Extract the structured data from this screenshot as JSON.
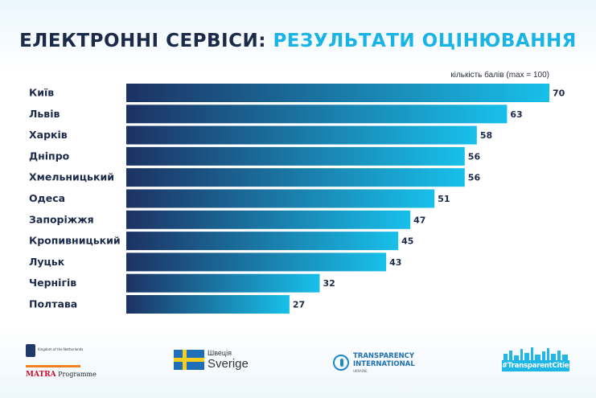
{
  "title": {
    "part1": "ЕЛЕКТРОННІ СЕРВІСИ:",
    "part2": "РЕЗУЛЬТАТИ ОЦІНЮВАННЯ"
  },
  "colors": {
    "title_dark": "#1c2a4a",
    "title_accent": "#19b3e6",
    "bar_dark": "#1c3263",
    "bar_light": "#18c0ea"
  },
  "chart_data": {
    "type": "bar",
    "orientation": "horizontal",
    "title": "ЕЛЕКТРОННІ СЕРВІСИ: РЕЗУЛЬТАТИ ОЦІНЮВАННЯ",
    "xlabel": "кількість балів (max = 100)",
    "ylabel": "",
    "xlim": [
      0,
      70
    ],
    "categories": [
      "Київ",
      "Львів",
      "Харків",
      "Дніпро",
      "Хмельницький",
      "Одеса",
      "Запоріжжя",
      "Кропивницький",
      "Луцьк",
      "Чернігів",
      "Полтава"
    ],
    "values": [
      70,
      63,
      58,
      56,
      56,
      51,
      47,
      45,
      43,
      32,
      27
    ]
  },
  "logos": {
    "netherlands": {
      "small": "Kingdom of the Netherlands",
      "matra": "MATRA",
      "programme": "Programme"
    },
    "sweden": {
      "line1": "Швеція",
      "line2": "Sverige"
    },
    "ti": {
      "line1": "TRANSPARENCY",
      "line2": "INTERNATIONAL",
      "line3": "UKRAINE"
    },
    "cities": {
      "tag": "#TransparentCities"
    }
  }
}
